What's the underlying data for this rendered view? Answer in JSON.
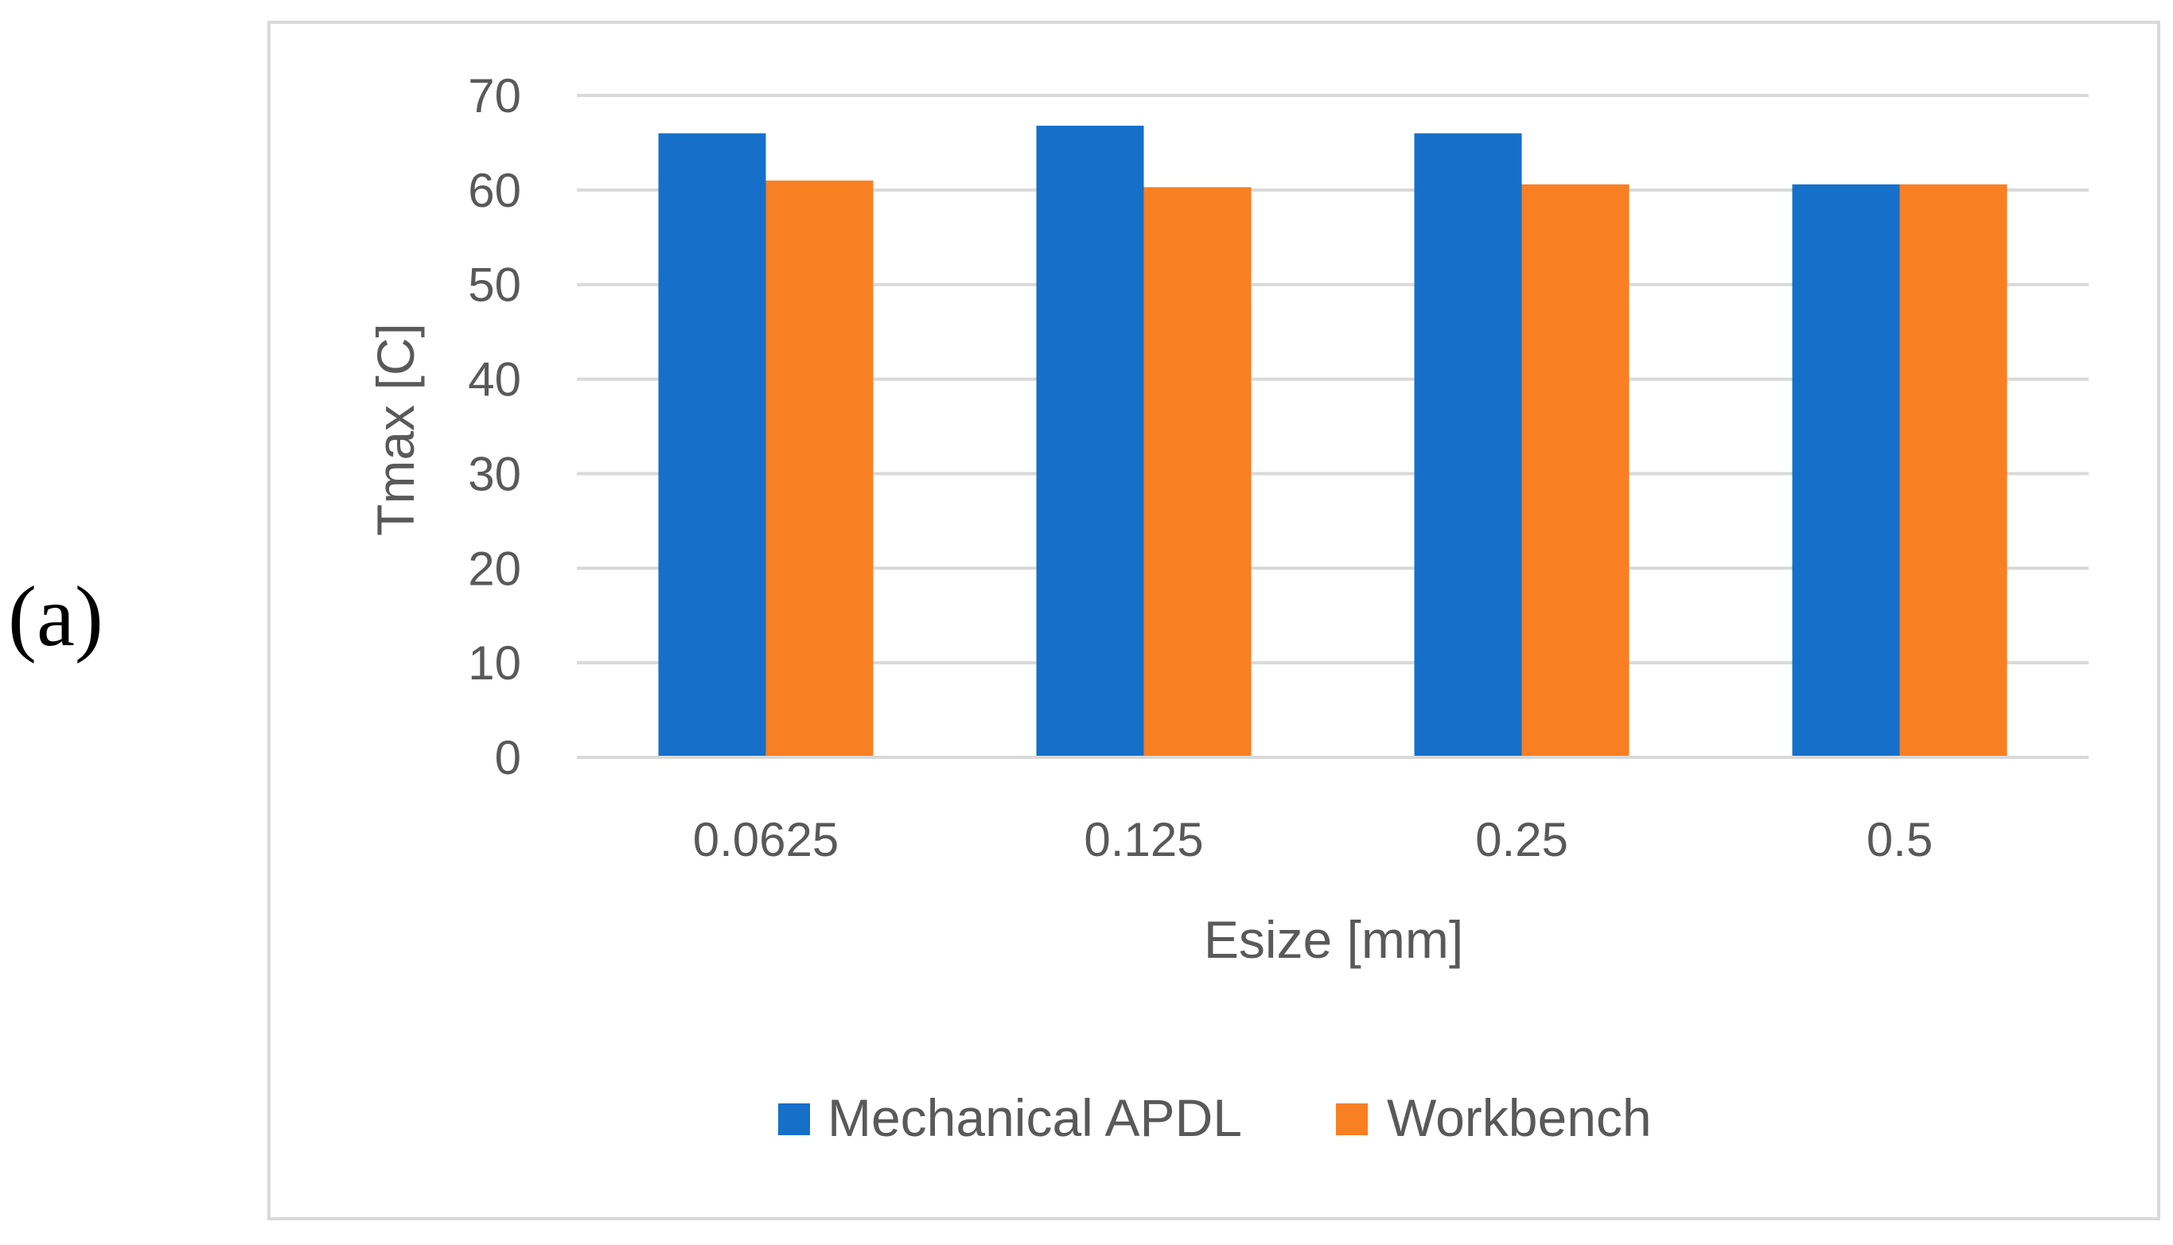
{
  "panel_label": "(a)",
  "chart_data": {
    "type": "bar",
    "categories": [
      "0.0625",
      "0.125",
      "0.25",
      "0.5"
    ],
    "series": [
      {
        "name": "Mechanical APDL",
        "values": [
          66,
          66.8,
          66,
          60.6
        ],
        "color": "#1670c9"
      },
      {
        "name": "Workbench",
        "values": [
          61,
          60.3,
          60.6,
          60.6
        ],
        "color": "#f97f23"
      }
    ],
    "title": "",
    "xlabel": "Esize [mm]",
    "ylabel": "Tmax [C]",
    "ylim": [
      0,
      70
    ],
    "yticks": [
      0,
      10,
      20,
      30,
      40,
      50,
      60,
      70
    ],
    "grid": true,
    "legend_position": "bottom",
    "gridline_color": "#d9d9d9",
    "text_color": "#595959"
  }
}
